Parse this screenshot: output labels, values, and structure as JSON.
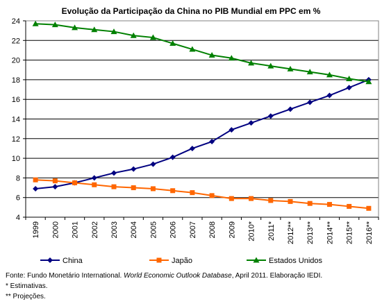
{
  "chart_data": {
    "type": "line",
    "title": "Evolução da Participação da China no PIB Mundial em PPC em %",
    "xlabel": "",
    "ylabel": "",
    "categories": [
      "1999",
      "2000",
      "2001",
      "2002",
      "2003",
      "2004",
      "2005",
      "2006",
      "2007",
      "2008",
      "2009",
      "2010*",
      "2011*",
      "2012**",
      "2013**",
      "2014**",
      "2015**",
      "2016**"
    ],
    "ylim": [
      4,
      24
    ],
    "yticks": [
      4,
      6,
      8,
      10,
      12,
      14,
      16,
      18,
      20,
      22,
      24
    ],
    "grid": "horizontal",
    "legend": "bottom",
    "series": [
      {
        "name": "China",
        "color": "#000080",
        "marker": "diamond",
        "values": [
          6.9,
          7.1,
          7.5,
          8.0,
          8.5,
          8.9,
          9.4,
          10.1,
          11.0,
          11.7,
          12.9,
          13.6,
          14.3,
          15.0,
          15.7,
          16.4,
          17.2,
          18.0
        ]
      },
      {
        "name": "Japão",
        "color": "#FF6600",
        "marker": "square",
        "values": [
          7.8,
          7.7,
          7.5,
          7.3,
          7.1,
          7.0,
          6.9,
          6.7,
          6.5,
          6.2,
          5.9,
          5.9,
          5.7,
          5.6,
          5.4,
          5.3,
          5.1,
          4.9
        ]
      },
      {
        "name": "Estados Unidos",
        "color": "#008000",
        "marker": "triangle",
        "values": [
          23.7,
          23.6,
          23.3,
          23.1,
          22.9,
          22.5,
          22.3,
          21.7,
          21.1,
          20.5,
          20.2,
          19.7,
          19.4,
          19.1,
          18.8,
          18.5,
          18.1,
          17.8
        ]
      }
    ]
  },
  "notes": {
    "source_prefix": "Fonte: Fundo Monetário International. ",
    "source_italic": "World Economic Outlook Database",
    "source_suffix": ", April 2011. Elaboração IEDI.",
    "estimates": "* Estimativas.",
    "projections": "** Projeções."
  }
}
